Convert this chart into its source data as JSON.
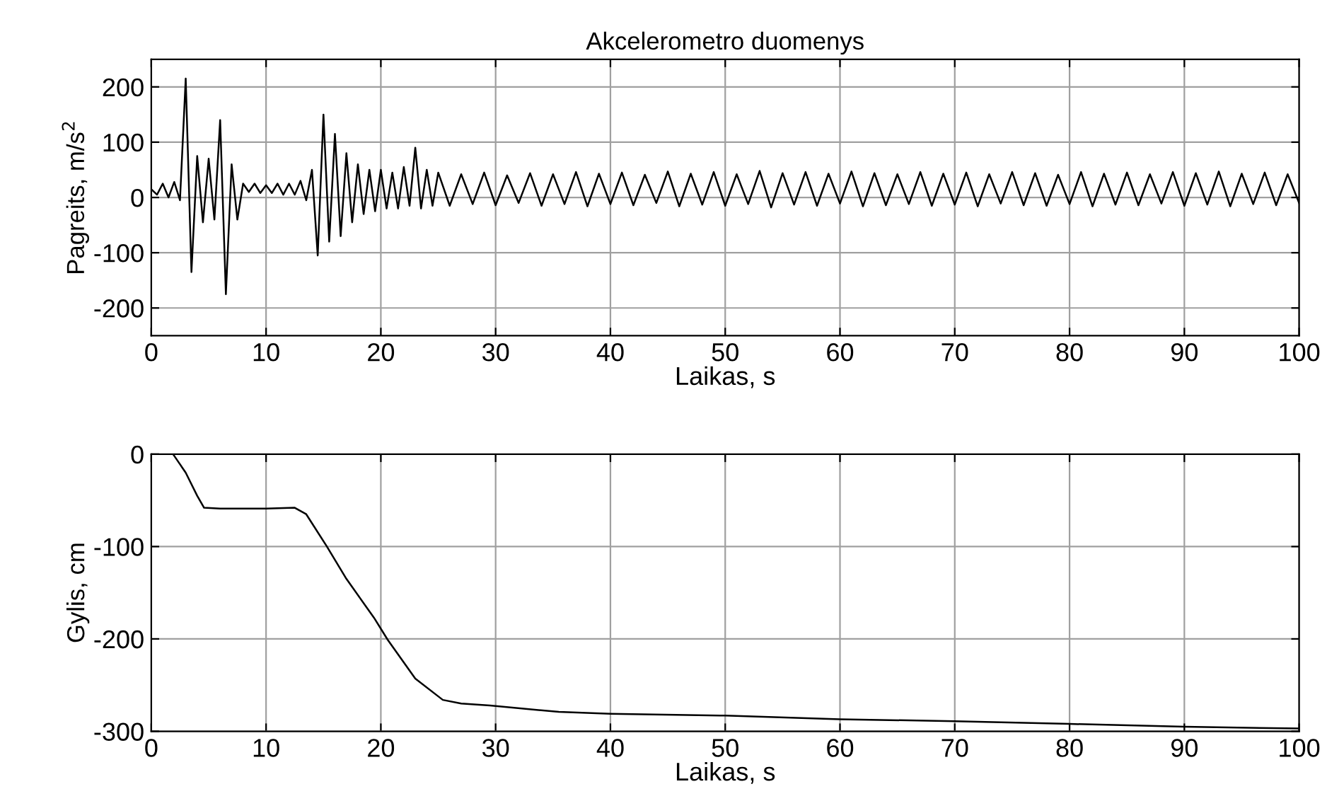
{
  "chart_data": [
    {
      "type": "line",
      "title": "Akcelerometro duomenys",
      "xlabel": "Laikas, s",
      "ylabel": "Pagreits, m/s$^{2}$",
      "xlim": [
        0,
        100
      ],
      "ylim": [
        -250,
        250
      ],
      "xticks": [
        0,
        10,
        20,
        30,
        40,
        50,
        60,
        70,
        80,
        90,
        100
      ],
      "yticks": [
        -200,
        -100,
        0,
        100,
        200
      ],
      "grid": true,
      "x": [
        0,
        0.5,
        1,
        1.5,
        2,
        2.5,
        3,
        3.5,
        4,
        4.5,
        5,
        5.5,
        6,
        6.5,
        7,
        7.5,
        8,
        8.5,
        9,
        9.5,
        10,
        10.5,
        11,
        11.5,
        12,
        12.5,
        13,
        13.5,
        14,
        14.5,
        15,
        15.5,
        16,
        16.5,
        17,
        17.5,
        18,
        18.5,
        19,
        19.5,
        20,
        20.5,
        21,
        21.5,
        22,
        22.5,
        23,
        23.5,
        24,
        24.5,
        25,
        26,
        27,
        28,
        29,
        30,
        31,
        32,
        33,
        34,
        35,
        36,
        37,
        38,
        39,
        40,
        41,
        42,
        43,
        44,
        45,
        46,
        47,
        48,
        49,
        50,
        51,
        52,
        53,
        54,
        55,
        56,
        57,
        58,
        59,
        60,
        61,
        62,
        63,
        64,
        65,
        66,
        67,
        68,
        69,
        70,
        71,
        72,
        73,
        74,
        75,
        76,
        77,
        78,
        79,
        80,
        81,
        82,
        83,
        84,
        85,
        86,
        87,
        88,
        89,
        90,
        91,
        92,
        93,
        94,
        95,
        96,
        97,
        98,
        99,
        100
      ],
      "series": [
        {
          "color": "#000000",
          "values": [
            15,
            5,
            25,
            0,
            28,
            -5,
            215,
            -135,
            75,
            -45,
            70,
            -40,
            140,
            -175,
            60,
            -40,
            25,
            10,
            25,
            8,
            22,
            8,
            25,
            5,
            25,
            5,
            30,
            -5,
            50,
            -105,
            150,
            -80,
            115,
            -70,
            80,
            -45,
            60,
            -30,
            50,
            -25,
            50,
            -20,
            45,
            -20,
            55,
            -15,
            90,
            -20,
            50,
            -15,
            45,
            -15,
            42,
            -12,
            45,
            -14,
            40,
            -10,
            44,
            -15,
            42,
            -12,
            46,
            -16,
            43,
            -12,
            45,
            -14,
            41,
            -10,
            47,
            -16,
            43,
            -13,
            46,
            -15,
            42,
            -12,
            48,
            -18,
            44,
            -13,
            46,
            -15,
            43,
            -11,
            47,
            -16,
            44,
            -14,
            42,
            -12,
            46,
            -15,
            43,
            -13,
            45,
            -16,
            42,
            -11,
            46,
            -14,
            44,
            -15,
            41,
            -12,
            46,
            -16,
            43,
            -13,
            45,
            -14,
            42,
            -11,
            46,
            -15,
            44,
            -13,
            47,
            -16,
            43,
            -12,
            45,
            -14,
            42,
            -10
          ]
        }
      ]
    },
    {
      "type": "line",
      "xlabel": "Laikas, s",
      "ylabel": "Gylis, cm",
      "xlim": [
        0,
        100
      ],
      "ylim": [
        -300,
        0
      ],
      "xticks": [
        0,
        10,
        20,
        30,
        40,
        50,
        60,
        70,
        80,
        90,
        100
      ],
      "yticks": [
        -300,
        -200,
        -100,
        0
      ],
      "grid": true,
      "x": [
        1.9,
        3,
        4,
        4.6,
        6,
        8,
        10,
        12.5,
        13.5,
        15.3,
        17,
        19.4,
        20.6,
        23,
        25.4,
        27,
        29.5,
        35.5,
        40,
        50,
        60,
        70,
        80,
        90,
        100
      ],
      "series": [
        {
          "color": "#000000",
          "values": [
            0,
            -20,
            -45,
            -58,
            -59,
            -59,
            -59,
            -58,
            -65,
            -100,
            -135,
            -177,
            -201,
            -243,
            -266,
            -270,
            -272,
            -279,
            -281,
            -283,
            -287,
            -289,
            -292,
            -295,
            -297
          ]
        }
      ]
    }
  ]
}
